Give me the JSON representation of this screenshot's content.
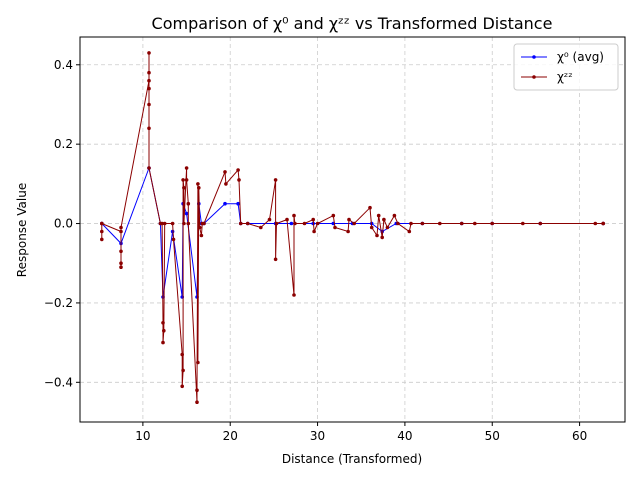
{
  "chart_data": {
    "type": "line",
    "title": "Comparison of χ⁰ and χᶻᶻ vs Transformed Distance",
    "xlabel": "Distance (Transformed)",
    "ylabel": "Response Value",
    "xlim": [
      2.8,
      65.2
    ],
    "ylim": [
      -0.5,
      0.47
    ],
    "xticks": [
      10,
      20,
      30,
      40,
      50,
      60
    ],
    "yticks": [
      -0.4,
      -0.2,
      0.0,
      0.2,
      0.4
    ],
    "xtick_labels": [
      "10",
      "20",
      "30",
      "40",
      "50",
      "60"
    ],
    "ytick_labels": [
      "−0.4",
      "−0.2",
      "0.0",
      "0.2",
      "0.4"
    ],
    "grid": true,
    "legend_position": "top-right",
    "series": [
      {
        "name": "χ⁰ (avg)",
        "color": "#0000ff",
        "x": [
          5.3,
          7.5,
          10.7,
          12.0,
          12.3,
          13.4,
          14.5,
          14.6,
          15.0,
          16.2,
          16.4,
          16.7,
          17.0,
          19.4,
          20.9,
          21.2,
          22.0,
          25.2,
          27.0,
          29.5,
          31.8,
          34.0,
          36.2,
          37.4,
          39.0,
          42.0,
          46.5,
          50.0,
          55.5,
          62.7
        ],
        "values": [
          0.0,
          -0.05,
          0.14,
          0.0,
          -0.185,
          -0.02,
          -0.185,
          0.05,
          0.025,
          -0.185,
          0.05,
          0.0,
          0.0,
          0.05,
          0.05,
          0.0,
          0.0,
          0.0,
          0.0,
          0.0,
          0.0,
          0.0,
          0.0,
          -0.02,
          0.0,
          0.0,
          0.0,
          0.0,
          0.0,
          0.0
        ]
      },
      {
        "name": "χᶻᶻ",
        "color": "#8b0000",
        "x": [
          5.3,
          5.3,
          5.3,
          5.3,
          7.5,
          7.5,
          7.5,
          7.5,
          7.5,
          10.7,
          10.7,
          10.7,
          10.7,
          10.7,
          10.7,
          10.7,
          12.0,
          12.2,
          12.3,
          12.3,
          12.4,
          12.5,
          13.4,
          13.5,
          14.5,
          14.5,
          14.6,
          14.6,
          14.7,
          14.7,
          15.0,
          15.0,
          15.2,
          15.2,
          16.2,
          16.2,
          16.3,
          16.3,
          16.4,
          16.5,
          16.7,
          16.8,
          17.0,
          19.4,
          19.5,
          20.9,
          21.0,
          21.2,
          22.0,
          23.5,
          24.5,
          25.2,
          25.2,
          25.3,
          26.5,
          27.3,
          27.3,
          27.4,
          28.5,
          29.5,
          29.6,
          30.0,
          31.8,
          32.0,
          33.5,
          33.6,
          34.2,
          36.0,
          36.2,
          36.8,
          37.0,
          37.4,
          37.6,
          38.0,
          38.8,
          39.2,
          40.5,
          40.7,
          42.0,
          44.0,
          46.5,
          48.0,
          50.0,
          53.5,
          55.5,
          62.7,
          61.8,
          62.7
        ],
        "values": [
          0.0,
          -0.02,
          -0.04,
          0.0,
          -0.02,
          -0.07,
          -0.1,
          -0.11,
          -0.01,
          0.36,
          0.43,
          0.38,
          0.3,
          0.24,
          0.34,
          0.14,
          0.0,
          0.0,
          -0.25,
          -0.3,
          -0.27,
          0.0,
          0.0,
          -0.04,
          -0.33,
          -0.41,
          -0.37,
          0.11,
          0.09,
          0.0,
          0.14,
          0.11,
          0.05,
          0.0,
          -0.45,
          -0.42,
          0.1,
          -0.35,
          0.09,
          -0.01,
          -0.03,
          0.0,
          0.0,
          0.13,
          0.1,
          0.135,
          0.11,
          0.0,
          0.0,
          -0.01,
          0.01,
          0.11,
          -0.09,
          0.0,
          0.01,
          -0.18,
          0.02,
          0.0,
          0.0,
          0.01,
          -0.02,
          0.0,
          0.02,
          -0.01,
          -0.02,
          0.01,
          0.0,
          0.04,
          -0.01,
          -0.03,
          0.02,
          -0.035,
          0.01,
          -0.01,
          0.02,
          0.0,
          -0.02,
          0.0,
          0.0,
          0.0,
          0.0,
          0.0,
          0.0,
          0.0,
          0.0,
          0.0,
          0.0,
          0.0
        ]
      }
    ]
  }
}
